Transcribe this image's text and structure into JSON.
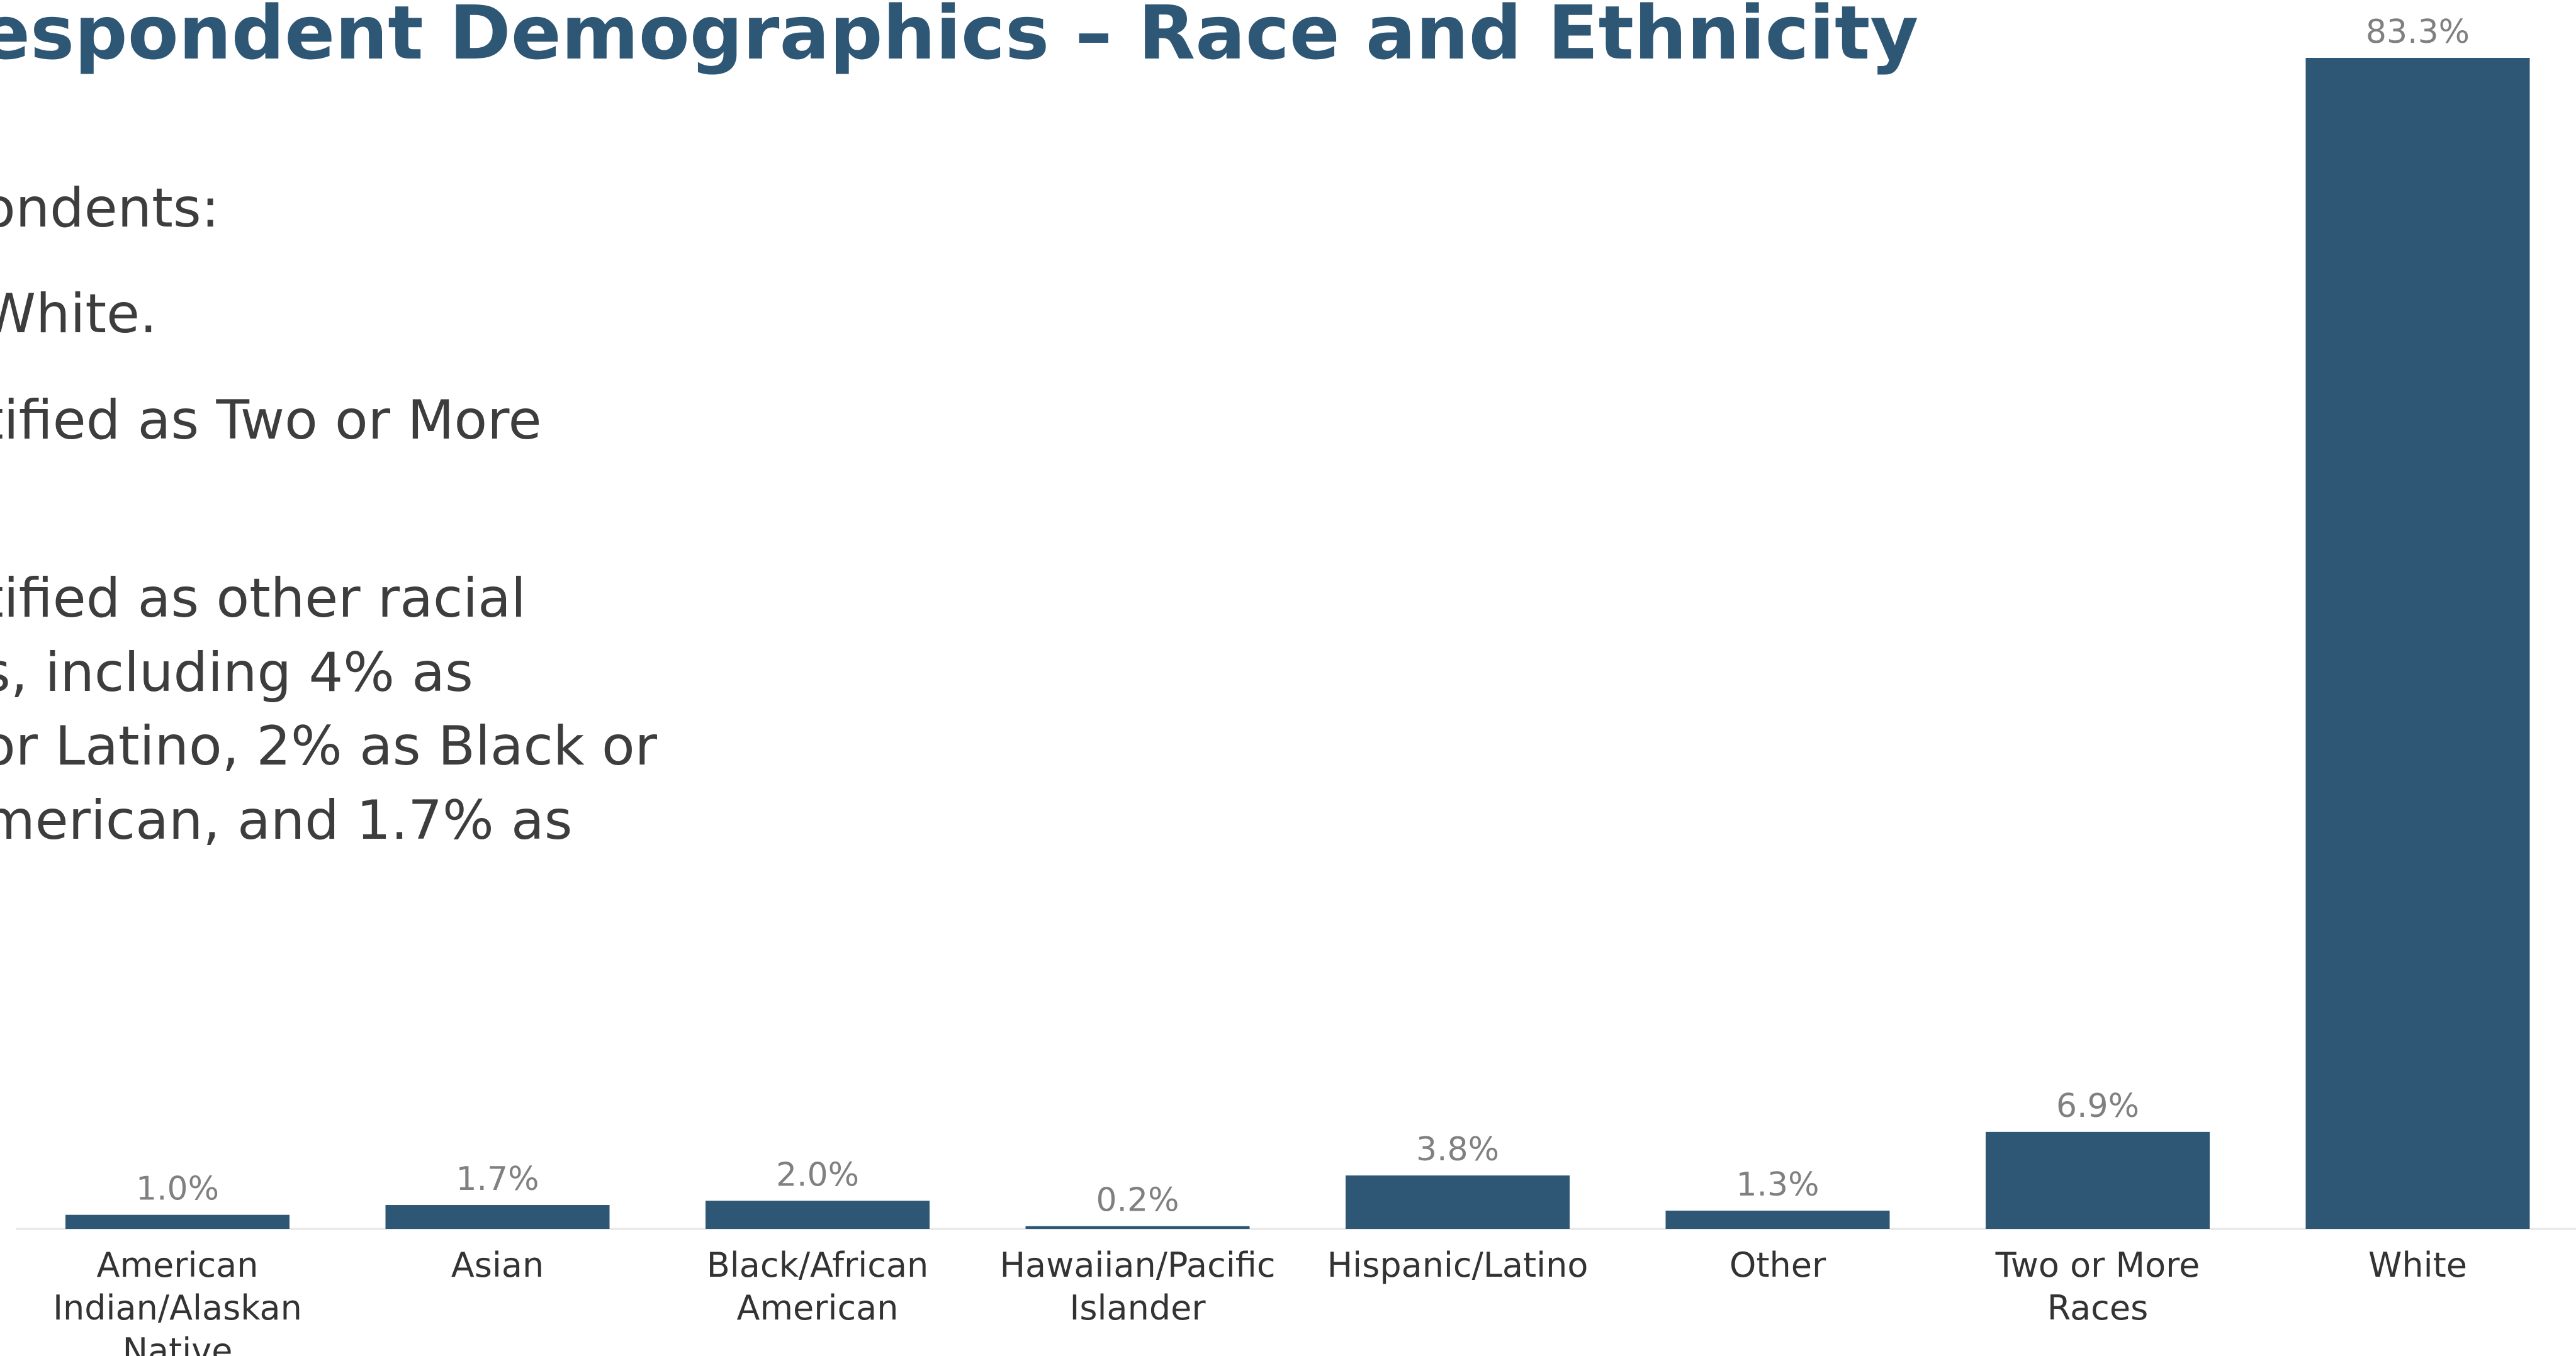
{
  "slide": {
    "title": "espondent Demographics – Race and Ethnicity",
    "text_lines": [
      "ondents:",
      " White.",
      "tified as Two or More",
      "tified as other racial",
      "s, including 4% as",
      "or Latino, 2% as Black or",
      "merican, and 1.7% as"
    ]
  },
  "chart_data": {
    "type": "bar",
    "categories": [
      [
        "American",
        "Indian/Alaskan",
        "Native"
      ],
      [
        "Asian"
      ],
      [
        "Black/African",
        "American"
      ],
      [
        "Hawaiian/Pacific",
        "Islander"
      ],
      [
        "Hispanic/Latino"
      ],
      [
        "Other"
      ],
      [
        "Two or More",
        "Races"
      ],
      [
        "White"
      ]
    ],
    "values": [
      1.0,
      1.7,
      2.0,
      0.2,
      3.8,
      1.3,
      6.9,
      83.3
    ],
    "value_labels": [
      "1.0%",
      "1.7%",
      "2.0%",
      "0.2%",
      "3.8%",
      "1.3%",
      "6.9%",
      "83.3%"
    ],
    "ylim": [
      0,
      83.3
    ],
    "grid": false,
    "legend": "none",
    "bar_color": "#2E5675"
  }
}
